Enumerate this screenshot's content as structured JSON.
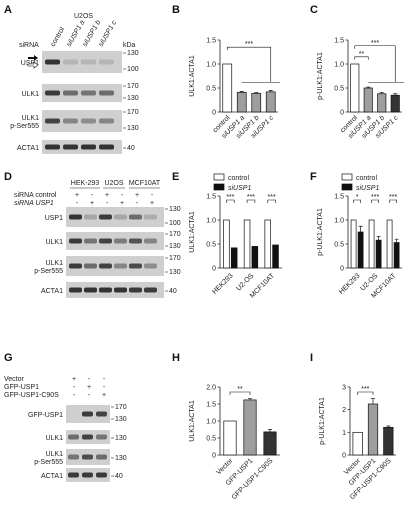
{
  "panels": {
    "A": {
      "letter": "A",
      "cell_line": "U2OS",
      "siRNA_label": "siRNA",
      "lanes": [
        "control",
        "siUSP1 a",
        "siUSP1 b",
        "siUSP1 c"
      ],
      "kda": "kDa",
      "rows": [
        {
          "label": "USP1",
          "markers": [
            "130",
            "100"
          ]
        },
        {
          "label": "ULK1",
          "markers": [
            "170",
            "130"
          ]
        },
        {
          "label": "ULK1\np-Ser555",
          "markers": [
            "170",
            "130"
          ]
        },
        {
          "label": "ACTA1",
          "markers": [
            "40"
          ]
        }
      ]
    },
    "D": {
      "letter": "D",
      "groups": [
        "HEK-293",
        "U2OS",
        "MCF10AT"
      ],
      "treatments": [
        "siRNA control",
        "siRNA USP1"
      ],
      "signs": [
        [
          "+",
          "-",
          "+",
          "-",
          "+",
          "-"
        ],
        [
          "-",
          "+",
          "-",
          "+",
          "-",
          "+"
        ]
      ],
      "rows": [
        {
          "label": "USP1",
          "markers": [
            "130",
            "100"
          ]
        },
        {
          "label": "ULK1",
          "markers": [
            "170",
            "130"
          ]
        },
        {
          "label": "ULK1\np-Ser555",
          "markers": [
            "170",
            "130"
          ]
        },
        {
          "label": "ACTA1",
          "markers": [
            "40"
          ]
        }
      ]
    },
    "G": {
      "letter": "G",
      "treatments": [
        "Vector",
        "GFP-USP1",
        "GFP-USP1-C90S"
      ],
      "signs": [
        [
          "+",
          "-",
          "-"
        ],
        [
          "-",
          "+",
          "-"
        ],
        [
          "-",
          "-",
          "+"
        ]
      ],
      "rows": [
        {
          "label": "GFP-USP1",
          "markers": [
            "170",
            "130"
          ]
        },
        {
          "label": "ULK1",
          "markers": [
            "130"
          ]
        },
        {
          "label": "ULK1\np-Ser555",
          "markers": [
            "130"
          ]
        },
        {
          "label": "ACTA1",
          "markers": [
            "40"
          ]
        }
      ]
    }
  },
  "chart_data": [
    {
      "id": "B",
      "type": "bar",
      "ylabel": "ULK1:ACTA1",
      "ylim": [
        0,
        1.5
      ],
      "yticks": [
        0,
        0.5,
        1.0,
        1.5
      ],
      "categories": [
        "control",
        "siUSP1 a",
        "siUSP1 b",
        "siUSP1 c"
      ],
      "values": [
        1.0,
        0.41,
        0.39,
        0.42
      ],
      "errors": [
        0,
        0.02,
        0.02,
        0.03
      ],
      "colors": [
        "#ffffff",
        "#9e9e9e",
        "#9e9e9e",
        "#9e9e9e"
      ],
      "significance": "***"
    },
    {
      "id": "C",
      "type": "bar",
      "ylabel": "p-ULK1:ACTA1",
      "ylim": [
        0,
        1.5
      ],
      "yticks": [
        0,
        0.5,
        1.0,
        1.5
      ],
      "categories": [
        "control",
        "siUSP1 a",
        "siUSP1 b",
        "siUSP1 c"
      ],
      "values": [
        1.0,
        0.5,
        0.38,
        0.35
      ],
      "errors": [
        0,
        0.02,
        0.03,
        0.03
      ],
      "colors": [
        "#ffffff",
        "#9e9e9e",
        "#9e9e9e",
        "#333333"
      ],
      "significance": [
        "**",
        "***"
      ]
    },
    {
      "id": "E",
      "type": "bar",
      "ylabel": "ULK1:ACTA1",
      "ylim": [
        0,
        1.5
      ],
      "yticks": [
        0,
        0.5,
        1.0,
        1.5
      ],
      "categories": [
        "HEK293",
        "U2-OS",
        "MCF10AT"
      ],
      "series": [
        {
          "name": "control",
          "values": [
            1.0,
            1.0,
            1.0
          ]
        },
        {
          "name": "siUSP1",
          "values": [
            0.42,
            0.45,
            0.48
          ]
        }
      ],
      "significance": [
        "***",
        "***",
        "***"
      ]
    },
    {
      "id": "F",
      "type": "bar",
      "ylabel": "p-ULK1:ACTA1",
      "ylim": [
        0,
        1.5
      ],
      "yticks": [
        0,
        0.5,
        1.0,
        1.5
      ],
      "categories": [
        "HEK293",
        "U2-OS",
        "MCF10AT"
      ],
      "series": [
        {
          "name": "control",
          "values": [
            1.0,
            1.0,
            1.0
          ]
        },
        {
          "name": "siUSP1",
          "values": [
            0.75,
            0.58,
            0.53
          ]
        }
      ],
      "errors": [
        0.12,
        0.08,
        0.07
      ],
      "significance": [
        "*",
        "***",
        "***"
      ]
    },
    {
      "id": "H",
      "type": "bar",
      "ylabel": "ULK1:ACTA1",
      "ylim": [
        0,
        2.0
      ],
      "yticks": [
        0,
        0.5,
        1.0,
        1.5,
        2.0
      ],
      "categories": [
        "Vector",
        "GFP-USP1",
        "GFP-USP1-C90S"
      ],
      "values": [
        1.0,
        1.62,
        0.68
      ],
      "errors": [
        0,
        0.04,
        0.07
      ],
      "colors": [
        "#ffffff",
        "#9e9e9e",
        "#333333"
      ],
      "significance": "**"
    },
    {
      "id": "I",
      "type": "bar",
      "ylabel": "p-ULK1:ACTA1",
      "ylim": [
        0,
        3
      ],
      "yticks": [
        0,
        1,
        2,
        3
      ],
      "categories": [
        "Vector",
        "GFP-USP1",
        "GFP-USP1-C90S"
      ],
      "values": [
        1.0,
        2.25,
        1.22
      ],
      "errors": [
        0,
        0.25,
        0.06
      ],
      "colors": [
        "#ffffff",
        "#9e9e9e",
        "#333333"
      ],
      "significance": "***"
    }
  ]
}
